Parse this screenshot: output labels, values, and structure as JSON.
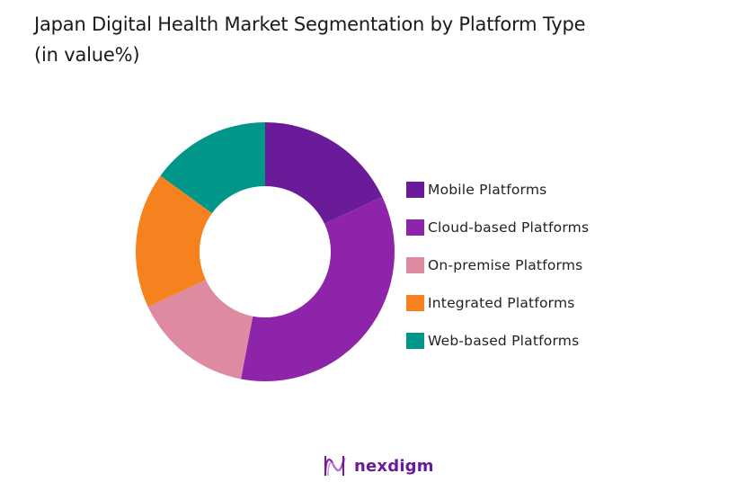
{
  "title_line1": "Japan Digital Health Market Segmentation by Platform Type",
  "title_line2": "(in value%)",
  "chart_data": {
    "type": "pie",
    "subtype": "donut",
    "title": "Japan Digital Health Market Segmentation by Platform Type (in value%)",
    "categories": [
      "Mobile Platforms",
      "Cloud-based Platforms",
      "On-premise Platforms",
      "Integrated Platforms",
      "Web-based Platforms"
    ],
    "values": [
      18,
      35,
      15,
      17,
      15
    ],
    "colors": [
      "#6a1b9a",
      "#8e24aa",
      "#de8aa0",
      "#f5821f",
      "#00968a"
    ],
    "legend_position": "right",
    "unit": "%"
  },
  "legend": [
    {
      "label": "Mobile Platforms",
      "color": "#6a1b9a"
    },
    {
      "label": "Cloud-based Platforms",
      "color": "#8e24aa"
    },
    {
      "label": "On-premise Platforms",
      "color": "#de8aa0"
    },
    {
      "label": "Integrated Platforms",
      "color": "#f5821f"
    },
    {
      "label": "Web-based Platforms",
      "color": "#00968a"
    }
  ],
  "logo": {
    "text": "nexdigm",
    "color": "#6a1b9a"
  }
}
